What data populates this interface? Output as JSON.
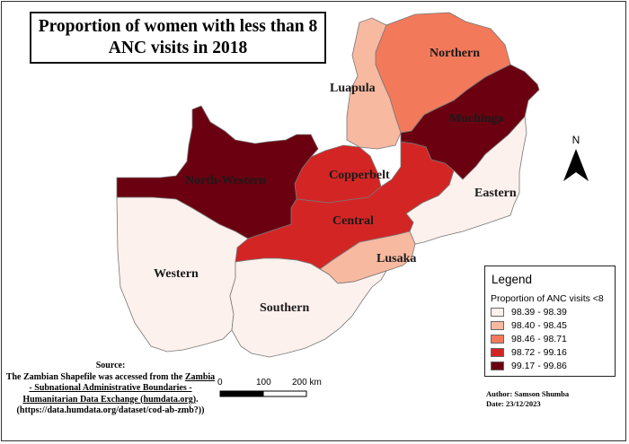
{
  "title": "Proportion of women with less than 8 ANC visits in 2018",
  "colors": {
    "class1": "#fdf1ee",
    "class2": "#f8b9a1",
    "class3": "#f27a5b",
    "class4": "#d42525",
    "class5": "#6b0010",
    "outline": "#777777"
  },
  "regions": {
    "northern": "Northern",
    "luapula": "Luapula",
    "muchinga": "Muchinga",
    "copperbelt": "Copperbelt",
    "north_western": "North-Western",
    "central": "Central",
    "eastern": "Eastern",
    "lusaka": "Lusaka",
    "western": "Western",
    "southern": "Southern"
  },
  "legend": {
    "title": "Legend",
    "subtitle": "Proportion of ANC visits <8",
    "items": [
      {
        "label": "98.39 - 98.39",
        "color": "#fdf1ee"
      },
      {
        "label": "98.40 - 98.45",
        "color": "#f8b9a1"
      },
      {
        "label": "98.46 - 98.71",
        "color": "#f27a5b"
      },
      {
        "label": "98.72 - 99.16",
        "color": "#d42525"
      },
      {
        "label": "99.17 - 99.86",
        "color": "#6b0010"
      }
    ]
  },
  "north_arrow": {
    "label": "N",
    "icon": "north-arrow-icon"
  },
  "scale_bar": {
    "labels": [
      "0",
      "100",
      "200 km"
    ]
  },
  "source": {
    "heading": "Source:",
    "line1": "The Zambian Shapefile was accessed from the",
    "link": "Zambia - Subnational Administrative Boundaries - Humanitarian Data Exchange (humdata.org)",
    "tail": ".",
    "url": "(https://data.humdata.org/dataset/cod-ab-zmb?))"
  },
  "author": {
    "name": "Author: Samson Shumba",
    "date": "Date: 23/12/2023"
  }
}
